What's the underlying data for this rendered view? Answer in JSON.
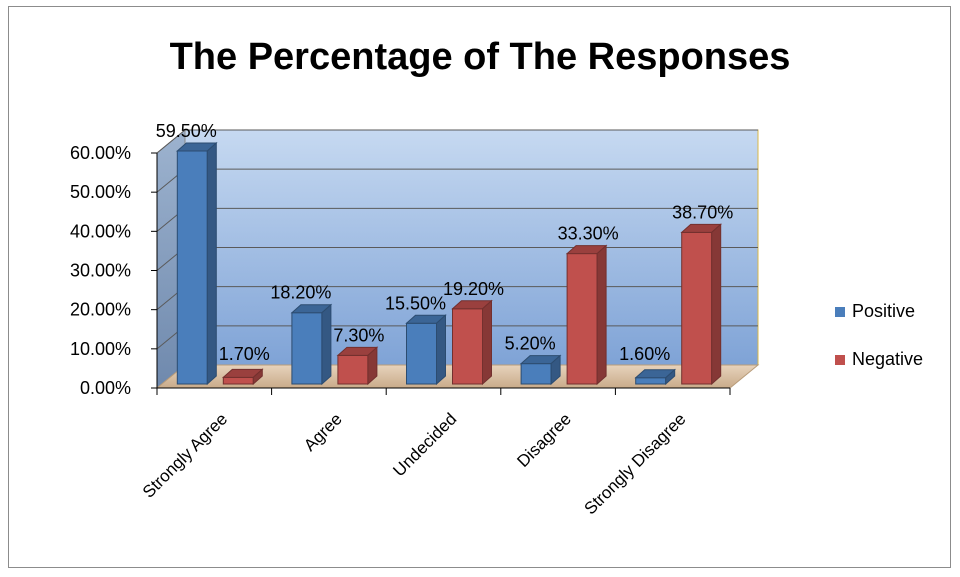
{
  "chart_data": {
    "type": "bar",
    "title": "The Percentage of The Responses",
    "categories": [
      "Strongly Agree",
      "Agree",
      "Undecided",
      "Disagree",
      "Strongly Disagree"
    ],
    "series": [
      {
        "name": "Positive",
        "values": [
          59.5,
          18.2,
          15.5,
          5.2,
          1.6
        ],
        "labels": [
          "59.50%",
          "18.20%",
          "15.50%",
          "5.20%",
          "1.60%"
        ],
        "color": "#4a7ebb"
      },
      {
        "name": "Negative",
        "values": [
          1.7,
          7.3,
          19.2,
          33.3,
          38.7
        ],
        "labels": [
          "1.70%",
          "7.30%",
          "19.20%",
          "33.30%",
          "38.70%"
        ],
        "color": "#c0504d"
      }
    ],
    "yticks": [
      "0.00%",
      "10.00%",
      "20.00%",
      "30.00%",
      "40.00%",
      "50.00%",
      "60.00%"
    ],
    "ylim": [
      0,
      60
    ],
    "legend_position": "right",
    "grid": true,
    "three_d": true
  }
}
